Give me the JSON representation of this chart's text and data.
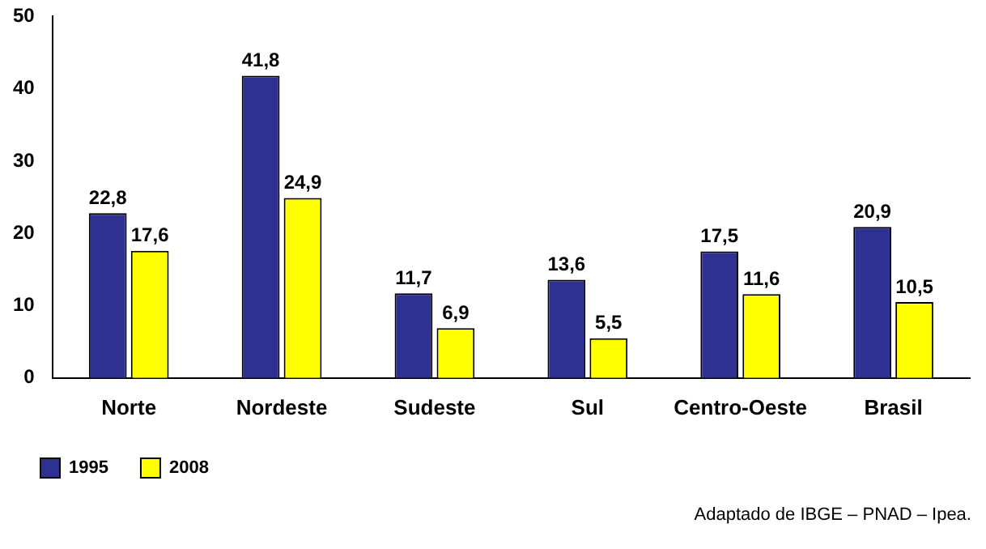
{
  "chart_data": {
    "type": "bar",
    "categories": [
      "Norte",
      "Nordeste",
      "Sudeste",
      "Sul",
      "Centro-Oeste",
      "Brasil"
    ],
    "series": [
      {
        "name": "1995",
        "color": "#2e3192",
        "values": [
          22.8,
          41.8,
          11.7,
          13.6,
          17.5,
          20.9
        ],
        "value_labels": [
          "22,8",
          "41,8",
          "11,7",
          "13,6",
          "17,5",
          "20,9"
        ]
      },
      {
        "name": "2008",
        "color": "#ffff00",
        "values": [
          17.6,
          24.9,
          6.9,
          5.5,
          11.6,
          10.5
        ],
        "value_labels": [
          "17,6",
          "24,9",
          "6,9",
          "5,5",
          "11,6",
          "10,5"
        ]
      }
    ],
    "ylim": [
      0,
      50
    ],
    "yticks": [
      0,
      10,
      20,
      30,
      40,
      50
    ],
    "grid": false,
    "legend": "bottom left",
    "annotations": [
      "Adaptado de IBGE – PNAD – Ipea."
    ]
  }
}
